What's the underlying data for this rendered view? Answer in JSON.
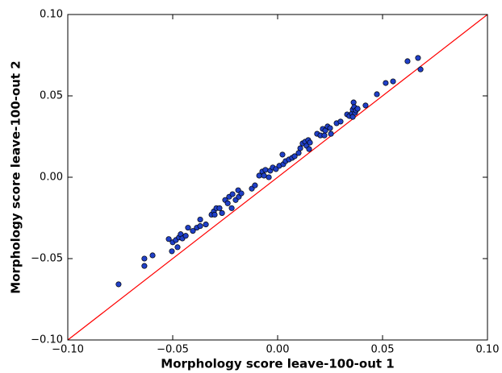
{
  "chart_data": {
    "type": "scatter",
    "xlabel": "Morphology score leave-100-out 1",
    "ylabel": "Morphology score leave-100-out 2",
    "xlim": [
      -0.1,
      0.1
    ],
    "ylim": [
      -0.1,
      0.1
    ],
    "xticks": [
      {
        "value": -0.1,
        "label": "−0.10"
      },
      {
        "value": -0.05,
        "label": "−0.05"
      },
      {
        "value": 0,
        "label": "0.00"
      },
      {
        "value": 0.05,
        "label": "0.05"
      },
      {
        "value": 0.1,
        "label": "0.10"
      }
    ],
    "yticks": [
      {
        "value": -0.1,
        "label": "−0.10"
      },
      {
        "value": -0.05,
        "label": "−0.05"
      },
      {
        "value": 0,
        "label": "0.00"
      },
      {
        "value": 0.05,
        "label": "0.05"
      },
      {
        "value": 0.1,
        "label": "0.10"
      }
    ],
    "grid": false,
    "diagonal_color": "#ff0000",
    "series": [
      {
        "color": "#2040c8",
        "x": [
          -0.0758,
          -0.0635,
          -0.0635,
          -0.0596,
          -0.0519,
          -0.0504,
          -0.05,
          -0.0485,
          -0.0477,
          -0.047,
          -0.0462,
          -0.0454,
          -0.0438,
          -0.0427,
          -0.0404,
          -0.0385,
          -0.0369,
          -0.0369,
          -0.0342,
          -0.0315,
          -0.0304,
          -0.03,
          -0.0292,
          -0.0277,
          -0.0265,
          -0.025,
          -0.0238,
          -0.0231,
          -0.0219,
          -0.0215,
          -0.02,
          -0.0188,
          -0.0185,
          -0.0173,
          -0.0123,
          -0.0108,
          -0.0088,
          -0.0073,
          -0.0065,
          -0.0058,
          -0.0042,
          -0.0035,
          -0.0023,
          -0.0008,
          0.0008,
          0.0023,
          0.0027,
          0.0038,
          0.0054,
          0.0069,
          0.0081,
          0.01,
          0.0108,
          0.0119,
          0.0131,
          0.0138,
          0.0146,
          0.015,
          0.0154,
          0.0188,
          0.0204,
          0.0215,
          0.0223,
          0.0227,
          0.0238,
          0.025,
          0.0254,
          0.0281,
          0.03,
          0.0331,
          0.0342,
          0.0354,
          0.0358,
          0.0358,
          0.0362,
          0.0365,
          0.0369,
          0.0373,
          0.0381,
          0.0419,
          0.0473,
          0.0515,
          0.055,
          0.0619,
          0.0669,
          0.0681
        ],
        "values": [
          -0.0658,
          -0.05,
          -0.0545,
          -0.048,
          -0.038,
          -0.0455,
          -0.04,
          -0.0386,
          -0.043,
          -0.037,
          -0.035,
          -0.0376,
          -0.036,
          -0.031,
          -0.033,
          -0.031,
          -0.026,
          -0.03,
          -0.029,
          -0.023,
          -0.021,
          -0.023,
          -0.019,
          -0.019,
          -0.022,
          -0.014,
          -0.016,
          -0.012,
          -0.019,
          -0.0104,
          -0.014,
          -0.008,
          -0.012,
          -0.0099,
          -0.007,
          -0.005,
          0.001,
          0.0035,
          0.001,
          0.0045,
          0,
          0.004,
          0.006,
          0.005,
          0.007,
          0.0139,
          0.008,
          0.0099,
          0.0109,
          0.0119,
          0.0129,
          0.0149,
          0.0178,
          0.0208,
          0.0218,
          0.0193,
          0.0228,
          0.0173,
          0.0213,
          0.0267,
          0.0257,
          0.0297,
          0.0257,
          0.0287,
          0.0312,
          0.0302,
          0.0267,
          0.0332,
          0.0342,
          0.0386,
          0.0376,
          0.0391,
          0.0416,
          0.0371,
          0.046,
          0.0431,
          0.0396,
          0.0411,
          0.0421,
          0.0441,
          0.051,
          0.0579,
          0.0589,
          0.0713,
          0.0733,
          0.0663
        ]
      }
    ]
  }
}
